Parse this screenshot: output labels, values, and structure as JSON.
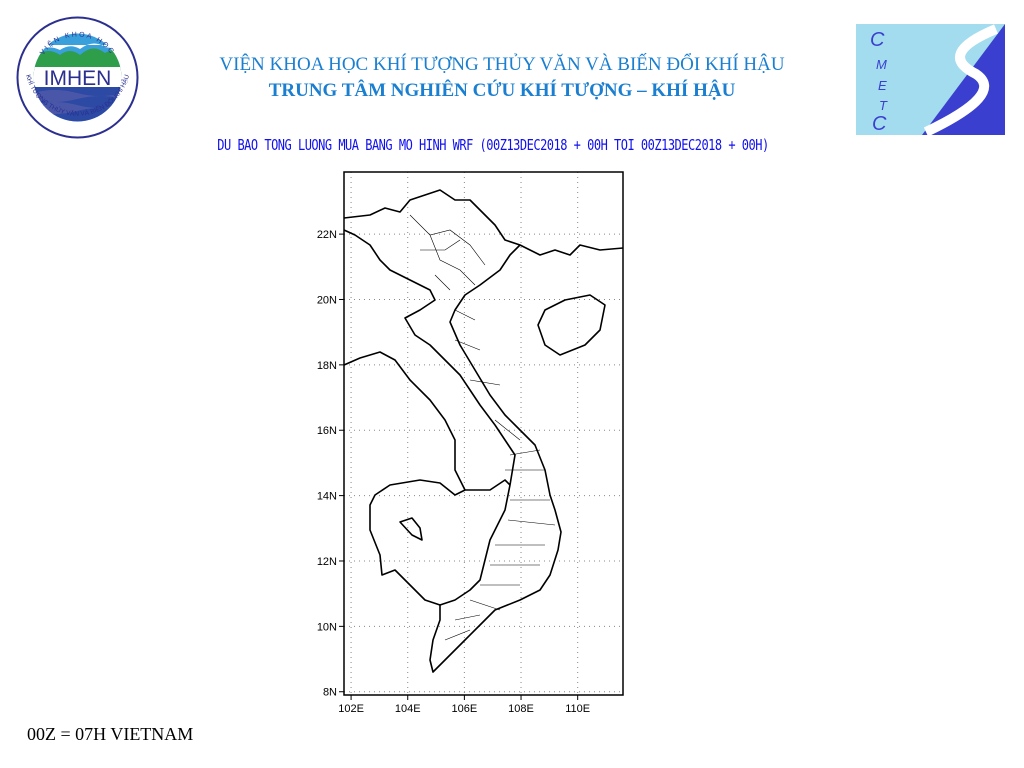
{
  "header": {
    "institute": "VIỆN KHOA HỌC KHÍ TƯỢNG THỦY VĂN VÀ BIẾN ĐỔI KHÍ HẬU",
    "center": "TRUNG TÂM NGHIÊN CỨU KHÍ TƯỢNG – KHÍ HẬU",
    "forecast_title": "DU BAO TONG LUONG MUA BANG MO HINH WRF (00Z13DEC2018 + 00H TOI 00Z13DEC2018 + 00H)"
  },
  "logos": {
    "left": {
      "text": "IMHEN",
      "ring_top": "VIỆN KHOA HỌC",
      "ring_bottom": "KHÍ TƯỢNG THỦY VĂN VÀ BIẾN ĐỔI KHÍ HẬU"
    },
    "right": {
      "letters": [
        "C",
        "M",
        "E",
        "T",
        "C"
      ]
    }
  },
  "map": {
    "lon_range": [
      101.75,
      111.6
    ],
    "lat_range": [
      7.9,
      23.9
    ],
    "lon_ticks": [
      "102E",
      "104E",
      "106E",
      "108E",
      "110E"
    ],
    "lat_ticks": [
      "22N",
      "20N",
      "18N",
      "16N",
      "14N",
      "12N",
      "10N",
      "8N"
    ],
    "grid": "dotted"
  },
  "footer": {
    "note": "00Z = 07H VIETNAM"
  },
  "colors": {
    "title": "#1a7fd0",
    "subtitle": "#1010ee",
    "logo_light": "#a3dcef",
    "logo_dark": "#3a3fcf"
  }
}
